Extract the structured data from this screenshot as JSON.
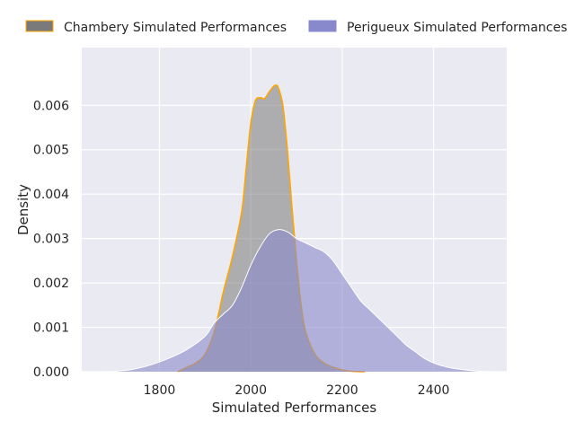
{
  "chart_data": {
    "type": "area",
    "title": "",
    "xlabel": "Simulated Performances",
    "ylabel": "Density",
    "xlim": [
      1630,
      2560
    ],
    "ylim": [
      0,
      0.0073
    ],
    "xticks": [
      1800,
      2000,
      2200,
      2400
    ],
    "xtick_labels": [
      "1800",
      "2000",
      "2200",
      "2400"
    ],
    "yticks": [
      0,
      0.001,
      0.002,
      0.003,
      0.004,
      0.005,
      0.006
    ],
    "ytick_labels": [
      "0.000",
      "0.001",
      "0.002",
      "0.003",
      "0.004",
      "0.005",
      "0.006"
    ],
    "grid": true,
    "legend_position": "top",
    "series": [
      {
        "name": "Chambery Simulated Performances",
        "fill_color": "#7a7a7a",
        "line_color": "#ffa500",
        "x": [
          1840,
          1860,
          1880,
          1900,
          1920,
          1940,
          1960,
          1980,
          1990,
          2000,
          2010,
          2020,
          2030,
          2040,
          2050,
          2055,
          2060,
          2070,
          2080,
          2090,
          2100,
          2110,
          2120,
          2140,
          2160,
          2180,
          2200,
          2220,
          2240,
          2250
        ],
        "y": [
          0,
          0.0001,
          0.0002,
          0.0004,
          0.0009,
          0.0018,
          0.0026,
          0.0036,
          0.0046,
          0.0056,
          0.0061,
          0.00617,
          0.00615,
          0.0063,
          0.00643,
          0.00645,
          0.0064,
          0.006,
          0.005,
          0.0037,
          0.0025,
          0.0015,
          0.0009,
          0.0004,
          0.0002,
          0.0001,
          4e-05,
          1e-05,
          2e-06,
          0
        ]
      },
      {
        "name": "Perigueux Simulated Performances",
        "fill_color": "#8888cc",
        "line_color": "#ffffff",
        "x": [
          1670,
          1700,
          1740,
          1780,
          1820,
          1860,
          1900,
          1920,
          1940,
          1960,
          1980,
          2000,
          2020,
          2040,
          2060,
          2080,
          2100,
          2120,
          2140,
          2160,
          2180,
          2200,
          2220,
          2240,
          2260,
          2280,
          2300,
          2320,
          2340,
          2360,
          2380,
          2400,
          2420,
          2440,
          2470,
          2500,
          2530
        ],
        "y": [
          0,
          1e-05,
          5e-05,
          0.00015,
          0.0003,
          0.0005,
          0.0008,
          0.0011,
          0.0013,
          0.0015,
          0.0019,
          0.0024,
          0.0028,
          0.0031,
          0.0032,
          0.00315,
          0.003,
          0.0029,
          0.0028,
          0.0027,
          0.0025,
          0.0022,
          0.0019,
          0.0016,
          0.0014,
          0.0012,
          0.001,
          0.0008,
          0.0006,
          0.00045,
          0.0003,
          0.0002,
          0.00013,
          8e-05,
          4e-05,
          1e-05,
          0
        ]
      }
    ]
  }
}
